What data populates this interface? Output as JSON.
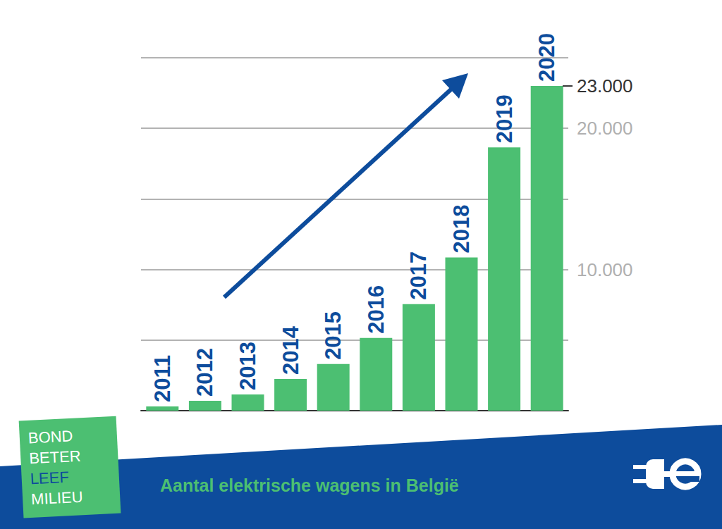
{
  "chart_data": {
    "type": "bar",
    "title": "Aantal elektrische wagens in België",
    "categories": [
      "2011",
      "2012",
      "2013",
      "2014",
      "2015",
      "2016",
      "2017",
      "2018",
      "2019",
      "2020"
    ],
    "values": [
      300,
      700,
      1150,
      2250,
      3300,
      5150,
      7550,
      10850,
      18650,
      23000
    ],
    "color": "#4cbf72",
    "ylim": [
      0,
      25000
    ],
    "yticks": [
      {
        "value": 5000,
        "label": null
      },
      {
        "value": 10000,
        "label": "10.000"
      },
      {
        "value": 15000,
        "label": null
      },
      {
        "value": 20000,
        "label": "20.000"
      },
      {
        "value": 25000,
        "label": null
      }
    ],
    "annotations": [
      {
        "text": "23.000",
        "value": 23000
      }
    ],
    "credit": [
      "BOND",
      "BETER",
      "LEEF",
      "MILIEU"
    ],
    "grid": true,
    "tick_labels": "y"
  }
}
